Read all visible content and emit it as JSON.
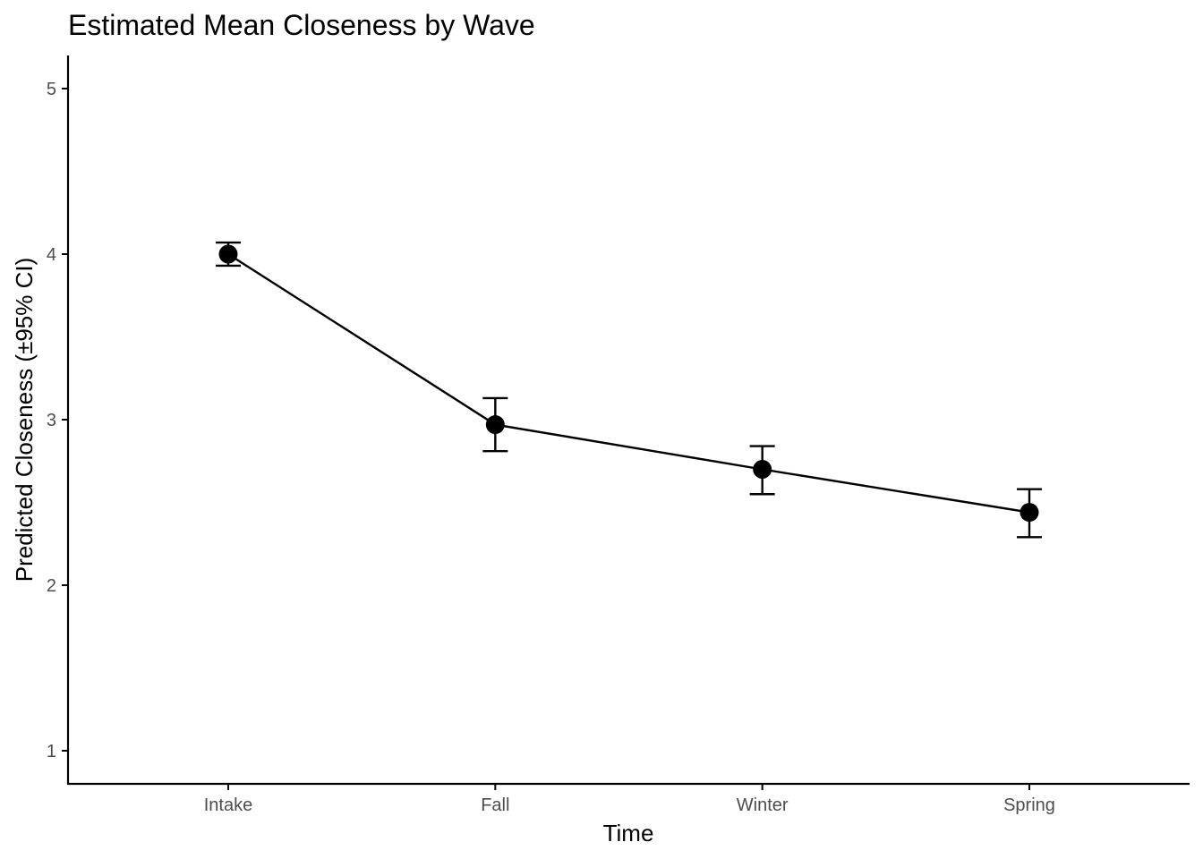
{
  "chart_data": {
    "type": "line",
    "title": "Estimated Mean Closeness by Wave",
    "xlabel": "Time",
    "ylabel": "Predicted Closeness (±95% CI)",
    "categories": [
      "Intake",
      "Fall",
      "Winter",
      "Spring"
    ],
    "series": [
      {
        "values": [
          4.0,
          2.97,
          2.7,
          2.44
        ],
        "ci_lower": [
          3.93,
          2.81,
          2.55,
          2.29
        ],
        "ci_upper": [
          4.07,
          3.13,
          2.84,
          2.58
        ]
      }
    ],
    "ylim": [
      0.8,
      5.2
    ],
    "yticks": [
      "1",
      "2",
      "3",
      "4",
      "5"
    ],
    "grid": false,
    "colors": {
      "line": "#000000",
      "point": "#000000",
      "axis": "#000000",
      "tick_text": "#4d4d4d"
    }
  }
}
